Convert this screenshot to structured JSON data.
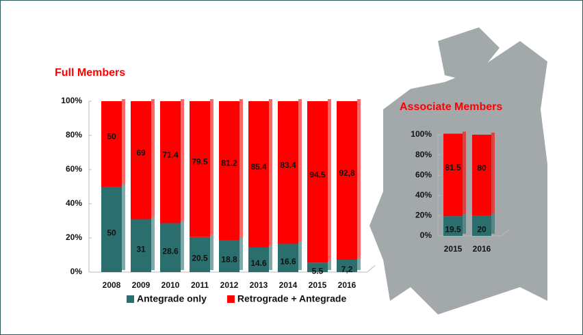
{
  "chart_data": [
    {
      "type": "bar",
      "stacked": true,
      "title": "Full Members",
      "categories": [
        "2008",
        "2009",
        "2010",
        "2011",
        "2012",
        "2013",
        "2014",
        "2015",
        "2016"
      ],
      "series": [
        {
          "name": "Antegrade only",
          "color": "#2a6e6e",
          "values": [
            50,
            31,
            28.6,
            20.5,
            18.8,
            14.6,
            16.6,
            5.5,
            7.2
          ],
          "value_labels": [
            "50",
            "31",
            "28.6",
            "20.5",
            "18.8",
            "14.6",
            "16.6",
            "5.5",
            "7,2"
          ]
        },
        {
          "name": "Retrograde + Antegrade",
          "color": "#ff0000",
          "values": [
            50,
            69,
            71.4,
            79.5,
            81.2,
            85.4,
            83.4,
            94.5,
            92.8
          ],
          "value_labels": [
            "50",
            "69",
            "71.4",
            "79.5",
            "81.2",
            "85.4",
            "83.4",
            "94.5",
            "92,8"
          ]
        }
      ],
      "ylim": [
        0,
        100
      ],
      "yticks": [
        {
          "value": 0,
          "label": "0%"
        },
        {
          "value": 20,
          "label": "20%"
        },
        {
          "value": 40,
          "label": "40%"
        },
        {
          "value": 60,
          "label": "60%"
        },
        {
          "value": 80,
          "label": "80%"
        },
        {
          "value": 100,
          "label": "100%"
        }
      ],
      "legend": "bottom"
    },
    {
      "type": "bar",
      "stacked": true,
      "title": "Associate Members",
      "categories": [
        "2015",
        "2016"
      ],
      "series": [
        {
          "color": "#2a6e6e",
          "values": [
            19.5,
            20
          ]
        },
        {
          "color": "#ff0000",
          "values": [
            81.5,
            80
          ]
        }
      ],
      "ylim": [
        0,
        100
      ],
      "yticks": [
        {
          "value": 0,
          "label": "0%"
        },
        {
          "value": 20,
          "label": "20%"
        },
        {
          "value": 40,
          "label": "40%"
        },
        {
          "value": 60,
          "label": "60%"
        },
        {
          "value": 80,
          "label": "80%"
        },
        {
          "value": 100,
          "label": "100%"
        }
      ]
    }
  ]
}
